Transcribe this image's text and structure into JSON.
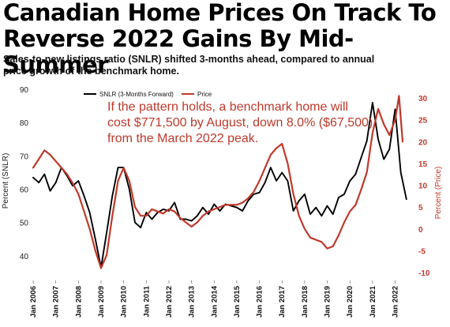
{
  "header": {
    "title_line1": "Canadian Home Prices On Track To",
    "title_line2": "Reverse 2022 Gains By Mid-Summer",
    "subtitle_line1": "Sales-to-new listings ratio (SNLR) shifted 3-months ahead, compared to annual",
    "subtitle_line2": "price growth of the benchmark home."
  },
  "chart_data": {
    "type": "line",
    "title": "Canadian Home Prices On Track To Reverse 2022 Gains By Mid-Summer",
    "ylabel": "Percent (SNLR)",
    "y2label": "Percent (Price)",
    "xlabel": "",
    "ylim": [
      35,
      90
    ],
    "y2lim": [
      -10,
      32
    ],
    "yticks": [
      "40",
      "50",
      "60",
      "70",
      "80",
      "90"
    ],
    "y2ticks": [
      "-10",
      "-5",
      "0",
      "5",
      "10",
      "15",
      "20",
      "25",
      "30"
    ],
    "xticks": [
      "Jan 2006",
      "Jan 2007",
      "Jan 2008",
      "Jan 2009",
      "Jan 2010",
      "Jan 2011",
      "Jan 2012",
      "Jan 2013",
      "Jan 2014",
      "Jan 2015",
      "Jan 2016",
      "Jan 2017",
      "Jan 2018",
      "Jan 2019",
      "Jan 2020",
      "Jan 2021",
      "Jan 2022"
    ],
    "legend_position": "top-left",
    "grid": false,
    "annotation": [
      "If the pattern holds, a benchmark home will",
      "cost $771,500 by August, down 8.0% ($67,500)",
      "from the March 2022 peak."
    ],
    "series": [
      {
        "name": "SNLR (3-Months Forward)",
        "axis": "left",
        "color": "#000000",
        "points": [
          [
            2006.0,
            63.5
          ],
          [
            2006.25,
            62.0
          ],
          [
            2006.5,
            64.5
          ],
          [
            2006.75,
            59.5
          ],
          [
            2007.0,
            62.0
          ],
          [
            2007.25,
            66.5
          ],
          [
            2007.5,
            64.0
          ],
          [
            2007.75,
            61.0
          ],
          [
            2008.0,
            62.5
          ],
          [
            2008.25,
            58.0
          ],
          [
            2008.5,
            53.0
          ],
          [
            2008.75,
            45.0
          ],
          [
            2009.0,
            36.5
          ],
          [
            2009.25,
            47.0
          ],
          [
            2009.5,
            58.0
          ],
          [
            2009.75,
            66.5
          ],
          [
            2010.0,
            66.5
          ],
          [
            2010.25,
            60.0
          ],
          [
            2010.5,
            50.0
          ],
          [
            2010.75,
            48.5
          ],
          [
            2011.0,
            53.0
          ],
          [
            2011.25,
            51.0
          ],
          [
            2011.5,
            53.0
          ],
          [
            2011.75,
            54.0
          ],
          [
            2012.0,
            53.5
          ],
          [
            2012.25,
            56.0
          ],
          [
            2012.5,
            51.0
          ],
          [
            2012.75,
            51.0
          ],
          [
            2013.0,
            50.5
          ],
          [
            2013.25,
            52.0
          ],
          [
            2013.5,
            54.5
          ],
          [
            2013.75,
            52.5
          ],
          [
            2014.0,
            55.5
          ],
          [
            2014.25,
            53.5
          ],
          [
            2014.5,
            55.5
          ],
          [
            2014.75,
            55.0
          ],
          [
            2015.0,
            54.5
          ],
          [
            2015.25,
            53.5
          ],
          [
            2015.5,
            56.5
          ],
          [
            2015.75,
            58.5
          ],
          [
            2016.0,
            59.0
          ],
          [
            2016.25,
            62.0
          ],
          [
            2016.5,
            66.5
          ],
          [
            2016.75,
            62.5
          ],
          [
            2017.0,
            65.0
          ],
          [
            2017.25,
            62.5
          ],
          [
            2017.5,
            53.5
          ],
          [
            2017.75,
            56.5
          ],
          [
            2018.0,
            58.5
          ],
          [
            2018.25,
            52.5
          ],
          [
            2018.5,
            54.5
          ],
          [
            2018.75,
            52.0
          ],
          [
            2019.0,
            55.0
          ],
          [
            2019.25,
            52.5
          ],
          [
            2019.5,
            57.5
          ],
          [
            2019.75,
            58.5
          ],
          [
            2020.0,
            62.5
          ],
          [
            2020.25,
            64.5
          ],
          [
            2020.5,
            69.5
          ],
          [
            2020.75,
            74.5
          ],
          [
            2021.0,
            86.0
          ],
          [
            2021.25,
            75.0
          ],
          [
            2021.5,
            69.0
          ],
          [
            2021.75,
            72.0
          ],
          [
            2022.0,
            84.0
          ],
          [
            2022.25,
            65.0
          ],
          [
            2022.5,
            57.0
          ]
        ]
      },
      {
        "name": "Price",
        "axis": "right",
        "color": "#c0392b",
        "points": [
          [
            2006.0,
            14.0
          ],
          [
            2006.25,
            16.0
          ],
          [
            2006.5,
            18.0
          ],
          [
            2006.75,
            17.0
          ],
          [
            2007.0,
            15.5
          ],
          [
            2007.25,
            14.0
          ],
          [
            2007.5,
            12.5
          ],
          [
            2007.75,
            10.5
          ],
          [
            2008.0,
            8.0
          ],
          [
            2008.25,
            4.0
          ],
          [
            2008.5,
            0.0
          ],
          [
            2008.75,
            -5.0
          ],
          [
            2009.0,
            -9.0
          ],
          [
            2009.25,
            -6.0
          ],
          [
            2009.5,
            3.0
          ],
          [
            2009.75,
            11.0
          ],
          [
            2010.0,
            14.0
          ],
          [
            2010.25,
            11.0
          ],
          [
            2010.5,
            5.0
          ],
          [
            2010.75,
            3.0
          ],
          [
            2011.0,
            3.0
          ],
          [
            2011.25,
            4.5
          ],
          [
            2011.5,
            4.0
          ],
          [
            2011.75,
            3.5
          ],
          [
            2012.0,
            4.5
          ],
          [
            2012.25,
            4.0
          ],
          [
            2012.5,
            2.5
          ],
          [
            2012.75,
            1.5
          ],
          [
            2013.0,
            0.5
          ],
          [
            2013.25,
            1.5
          ],
          [
            2013.5,
            3.0
          ],
          [
            2013.75,
            4.0
          ],
          [
            2014.0,
            4.5
          ],
          [
            2014.25,
            5.0
          ],
          [
            2014.5,
            5.5
          ],
          [
            2014.75,
            5.5
          ],
          [
            2015.0,
            5.5
          ],
          [
            2015.25,
            6.0
          ],
          [
            2015.5,
            7.0
          ],
          [
            2015.75,
            8.5
          ],
          [
            2016.0,
            11.0
          ],
          [
            2016.25,
            14.0
          ],
          [
            2016.5,
            17.0
          ],
          [
            2016.75,
            18.5
          ],
          [
            2017.0,
            19.5
          ],
          [
            2017.25,
            15.0
          ],
          [
            2017.5,
            8.0
          ],
          [
            2017.75,
            3.0
          ],
          [
            2018.0,
            0.0
          ],
          [
            2018.25,
            -2.0
          ],
          [
            2018.5,
            -2.5
          ],
          [
            2018.75,
            -3.0
          ],
          [
            2019.0,
            -4.5
          ],
          [
            2019.25,
            -4.0
          ],
          [
            2019.5,
            -1.5
          ],
          [
            2019.75,
            1.5
          ],
          [
            2020.0,
            4.0
          ],
          [
            2020.25,
            5.5
          ],
          [
            2020.5,
            9.0
          ],
          [
            2020.75,
            13.0
          ],
          [
            2021.0,
            22.0
          ],
          [
            2021.25,
            27.5
          ],
          [
            2021.5,
            24.0
          ],
          [
            2021.75,
            21.5
          ],
          [
            2022.0,
            25.0
          ],
          [
            2022.17,
            30.5
          ],
          [
            2022.33,
            20.0
          ]
        ]
      }
    ]
  }
}
